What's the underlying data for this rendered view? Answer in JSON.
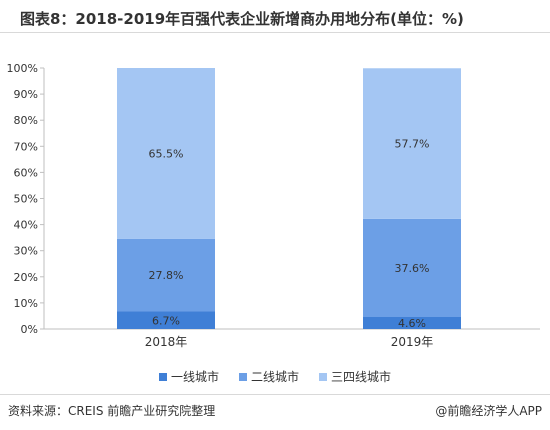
{
  "title": "图表8：2018-2019年百强代表企业新增商办用地分布(单位：%)",
  "source": "资料来源：CREIS 前瞻产业研究院整理",
  "brand": "@前瞻经济学人APP",
  "colors": {
    "tier1": "#3f7fd6",
    "tier2": "#6c9fe6",
    "tier3": "#a4c6f3",
    "axis": "#bfbfbf",
    "text": "#333333"
  },
  "chart_data": {
    "type": "bar",
    "stacked": true,
    "categories": [
      "2018年",
      "2019年"
    ],
    "series": [
      {
        "name": "一线城市",
        "values": [
          6.7,
          4.6
        ],
        "labels": [
          "6.7%",
          "4.6%"
        ]
      },
      {
        "name": "二线城市",
        "values": [
          27.8,
          37.6
        ],
        "labels": [
          "27.8%",
          "37.6%"
        ]
      },
      {
        "name": "三四线城市",
        "values": [
          65.5,
          57.7
        ],
        "labels": [
          "65.5%",
          "57.7%"
        ]
      }
    ],
    "ylim": [
      0,
      100
    ],
    "yticks": [
      0,
      10,
      20,
      30,
      40,
      50,
      60,
      70,
      80,
      90,
      100
    ],
    "ytick_labels": [
      "0%",
      "10%",
      "20%",
      "30%",
      "40%",
      "50%",
      "60%",
      "70%",
      "80%",
      "90%",
      "100%"
    ],
    "legend": "bottom",
    "grid": false
  }
}
